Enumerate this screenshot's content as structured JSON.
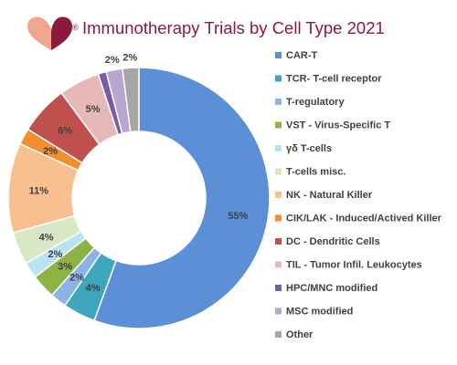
{
  "header": {
    "registered_mark": "®",
    "title": "Immunotherapy Trials by Cell Type 2021"
  },
  "colors": {
    "title": "#8b1a3c",
    "logo_left": "#f2a58e",
    "logo_right": "#8b1a3c",
    "legend_text": "#404040",
    "data_label": "#404040"
  },
  "chart_data": {
    "type": "pie",
    "style": "donut",
    "title": "Immunotherapy Trials by Cell Type 2021",
    "legend_position": "right",
    "labels": [
      "CAR-T",
      "TCR- T-cell receptor",
      "T-regulatory",
      "VST - Virus-Specific T",
      "γδ T-cells",
      "T-cells misc.",
      "NK - Natural Killer",
      "CIK/LAK - Induced/Actived Killer",
      "DC - Dendritic Cells",
      "TIL - Tumor Infil. Leukocytes",
      "HPC/MNC modified",
      "MSC modified",
      "Other"
    ],
    "values": [
      55,
      4,
      2,
      3,
      2,
      4,
      11,
      2,
      6,
      5,
      1,
      2,
      2
    ],
    "data_labels": [
      "55%",
      "4%",
      "2%",
      "3%",
      "2%",
      "4%",
      "11%",
      "2%",
      "6%",
      "5%",
      "",
      "2%",
      "2%"
    ],
    "colors": [
      "#5b8fd6",
      "#3ea7bd",
      "#8ab4e6",
      "#8db347",
      "#b9e3ef",
      "#d9e8c4",
      "#f8c08f",
      "#f28e2b",
      "#c0504d",
      "#e6b9b8",
      "#7a5ba6",
      "#b7a6cf",
      "#a6a6a6"
    ]
  }
}
